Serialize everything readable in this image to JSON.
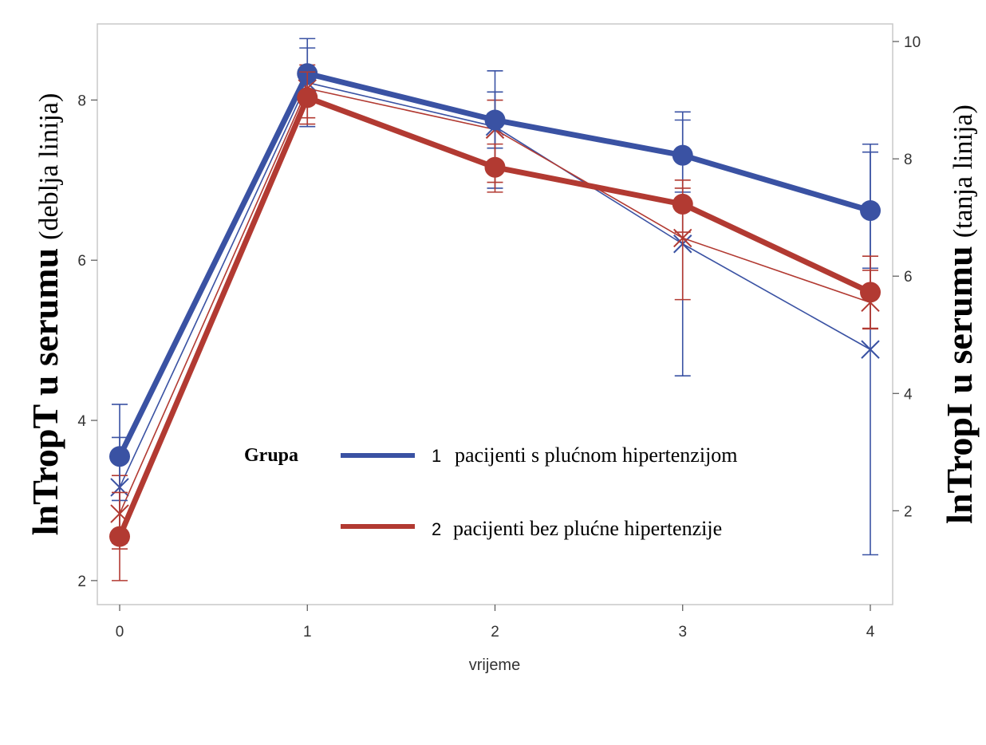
{
  "chart_data": {
    "type": "line",
    "xlabel": "vrijeme",
    "x": [
      0,
      1,
      2,
      3,
      4
    ],
    "y_left": {
      "label_bold": "lnTropT u serumu",
      "label_normal": "(deblja linija)",
      "ylim": [
        1.7,
        8.95
      ],
      "ticks": [
        2,
        4,
        6,
        8
      ]
    },
    "y_right": {
      "label_bold": "lnTropI u serumu",
      "label_normal": "(tanja linija)",
      "ylim": [
        0.4,
        10.3
      ],
      "ticks": [
        2,
        4,
        6,
        8,
        10
      ]
    },
    "legend": {
      "title": "Grupa",
      "placement": "center-right",
      "entries": [
        {
          "number": "1",
          "label": "pacijenti s plućnom hipertenzijom",
          "color": "#3a52a3"
        },
        {
          "number": "2",
          "label": "pacijenti bez plućne hipertenzije",
          "color": "#b23a32"
        }
      ]
    },
    "grid": false,
    "series": [
      {
        "group": "1",
        "measure": "lnTropT",
        "axis": "left",
        "style": "thick",
        "marker": "circle",
        "color": "#3a52a3",
        "values": [
          3.55,
          8.33,
          7.75,
          7.31,
          6.62
        ],
        "err_low": [
          3.0,
          8.1,
          7.4,
          6.85,
          5.9
        ],
        "err_high": [
          4.2,
          8.65,
          8.1,
          7.75,
          7.35
        ]
      },
      {
        "group": "2",
        "measure": "lnTropT",
        "axis": "left",
        "style": "thick",
        "marker": "circle",
        "color": "#b23a32",
        "values": [
          2.55,
          8.03,
          7.16,
          6.7,
          5.6
        ],
        "err_low": [
          2.0,
          7.7,
          6.85,
          6.35,
          5.15
        ],
        "err_high": [
          3.1,
          8.35,
          7.45,
          7.0,
          6.05
        ]
      },
      {
        "group": "1",
        "measure": "lnTropI",
        "axis": "right",
        "style": "thin",
        "marker": "x",
        "color": "#3a52a3",
        "values": [
          2.4,
          9.3,
          8.55,
          6.55,
          4.75
        ],
        "err_low": [
          1.45,
          8.55,
          7.5,
          4.3,
          1.25
        ],
        "err_high": [
          3.25,
          10.05,
          9.5,
          8.8,
          8.25
        ]
      },
      {
        "group": "2",
        "measure": "lnTropI",
        "axis": "right",
        "style": "thin",
        "marker": "x",
        "color": "#b23a32",
        "values": [
          1.95,
          9.2,
          8.5,
          6.65,
          5.55
        ],
        "err_low": [
          1.35,
          8.7,
          7.6,
          5.6,
          5.1
        ],
        "err_high": [
          2.6,
          9.6,
          9.0,
          7.5,
          6.1
        ]
      }
    ]
  }
}
